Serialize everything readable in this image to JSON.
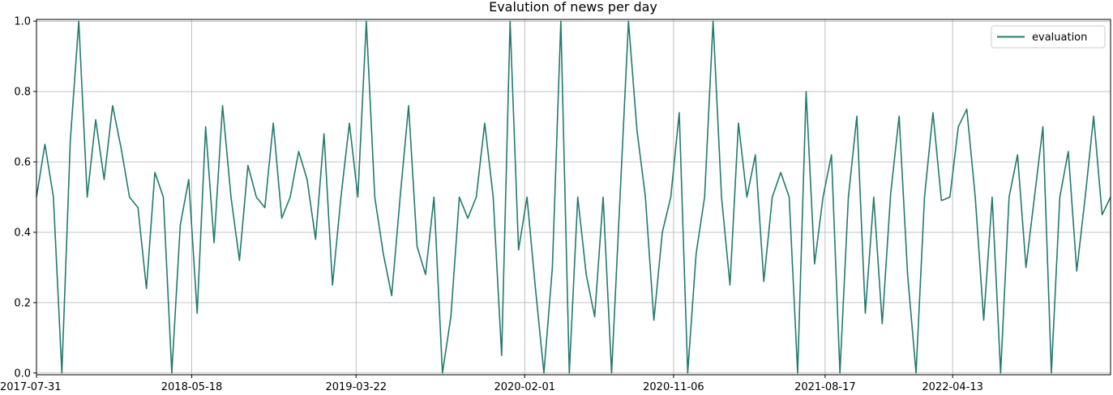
{
  "chart_data": {
    "type": "line",
    "title": "Evalution of news per day",
    "xlabel": "",
    "ylabel": "",
    "x_tick_labels": [
      "2017-07-31",
      "2018-05-18",
      "2019-03-22",
      "2020-02-01",
      "2020-11-06",
      "2021-08-17",
      "2022-04-13"
    ],
    "x_tick_dates": [
      "2017-07-31",
      "2018-05-18",
      "2019-03-22",
      "2020-02-01",
      "2020-11-06",
      "2021-08-17",
      "2022-04-13"
    ],
    "y_ticks": [
      0.0,
      0.2,
      0.4,
      0.6,
      0.8,
      1.0
    ],
    "y_tick_labels": [
      "0.0",
      "0.2",
      "0.4",
      "0.6",
      "0.8",
      "1.0"
    ],
    "xlim": [
      "2017-07-31",
      "2023-02-03"
    ],
    "ylim": [
      -0.005,
      1.005
    ],
    "grid": true,
    "legend": {
      "placement": "top-right"
    },
    "series": [
      {
        "name": "evaluation",
        "color": "#227a6e",
        "values": [
          0.5,
          0.65,
          0.5,
          0.0,
          0.66,
          1.0,
          0.5,
          0.72,
          0.55,
          0.76,
          0.64,
          0.5,
          0.47,
          0.24,
          0.57,
          0.5,
          0.0,
          0.42,
          0.55,
          0.17,
          0.7,
          0.37,
          0.76,
          0.5,
          0.32,
          0.59,
          0.5,
          0.47,
          0.71,
          0.44,
          0.5,
          0.63,
          0.55,
          0.38,
          0.68,
          0.25,
          0.5,
          0.71,
          0.5,
          1.0,
          0.5,
          0.34,
          0.22,
          0.5,
          0.76,
          0.36,
          0.28,
          0.5,
          0.0,
          0.16,
          0.5,
          0.44,
          0.5,
          0.71,
          0.5,
          0.05,
          1.0,
          0.35,
          0.5,
          0.24,
          0.0,
          0.3,
          1.0,
          0.0,
          0.5,
          0.28,
          0.16,
          0.5,
          0.0,
          0.5,
          1.0,
          0.69,
          0.5,
          0.15,
          0.4,
          0.5,
          0.74,
          0.0,
          0.34,
          0.5,
          1.0,
          0.5,
          0.25,
          0.71,
          0.5,
          0.62,
          0.26,
          0.5,
          0.57,
          0.5,
          0.0,
          0.8,
          0.31,
          0.5,
          0.62,
          0.0,
          0.5,
          0.73,
          0.17,
          0.5,
          0.14,
          0.51,
          0.73,
          0.28,
          0.0,
          0.5,
          0.74,
          0.49,
          0.5,
          0.7,
          0.75,
          0.5,
          0.15,
          0.5,
          0.0,
          0.5,
          0.62,
          0.3,
          0.5,
          0.7,
          0.0,
          0.5,
          0.63,
          0.29,
          0.5,
          0.73,
          0.45,
          0.5
        ]
      }
    ]
  }
}
